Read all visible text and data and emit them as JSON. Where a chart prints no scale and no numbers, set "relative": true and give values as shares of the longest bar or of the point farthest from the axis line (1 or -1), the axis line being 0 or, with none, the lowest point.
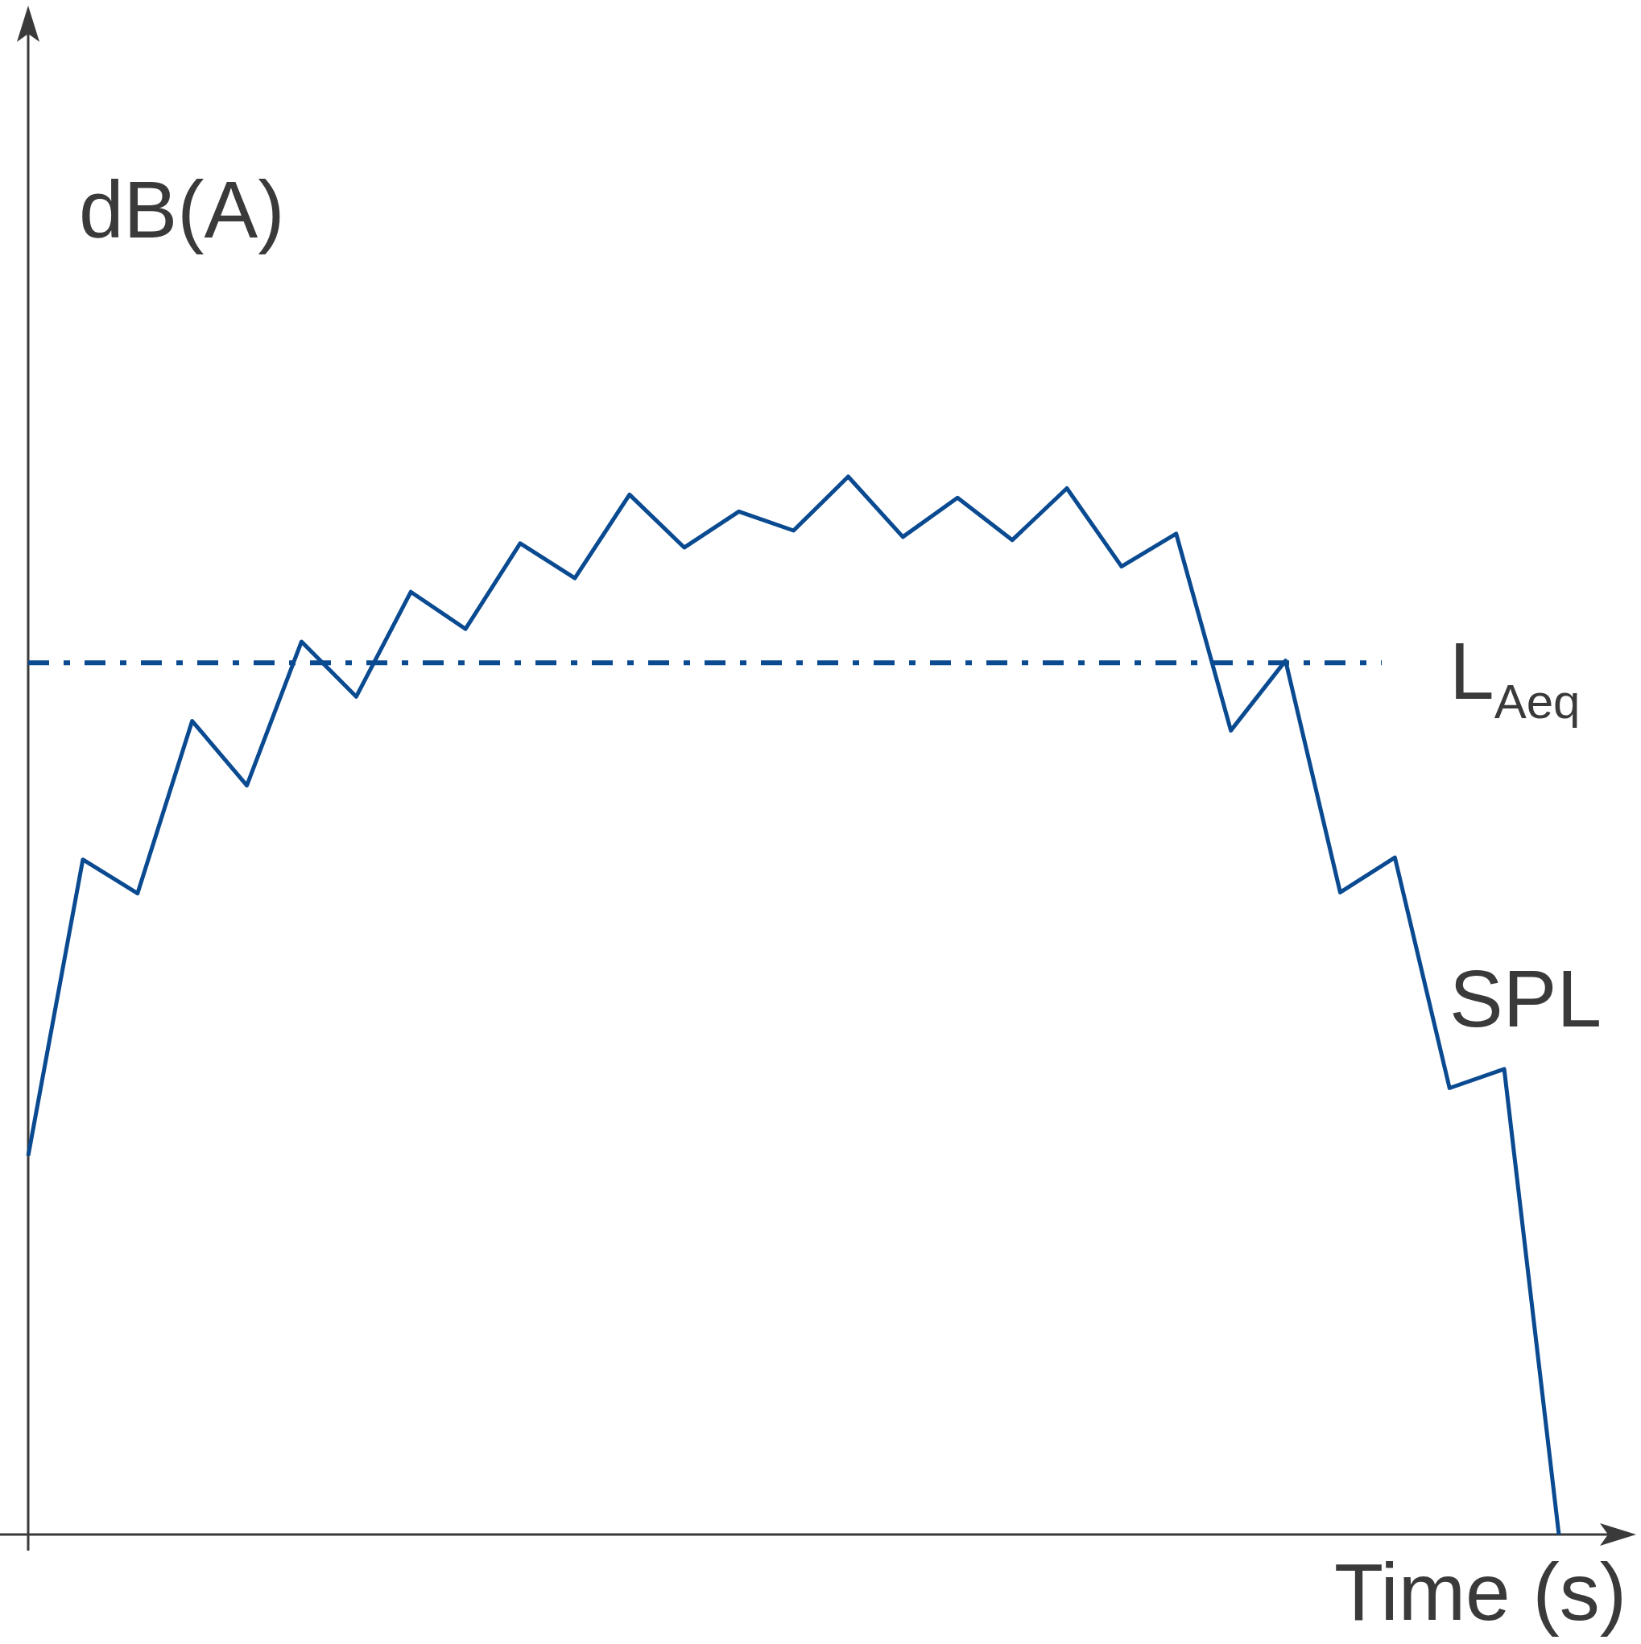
{
  "chart_data": {
    "type": "line",
    "relative": true,
    "xlabel": "Time (s)",
    "ylabel": "dB(A)",
    "categories": [
      null,
      null,
      null,
      null,
      null,
      null,
      null,
      null,
      null,
      null,
      null,
      null,
      null,
      null,
      null,
      null,
      null,
      null,
      null,
      null,
      null,
      null,
      null,
      null,
      null,
      null,
      null,
      null,
      null
    ],
    "series": [
      {
        "name": "SPL",
        "color": "#0a4a91",
        "values": [
          0.358,
          0.638,
          0.606,
          0.769,
          0.708,
          0.844,
          0.792,
          0.891,
          0.856,
          0.937,
          0.904,
          0.983,
          0.933,
          0.967,
          0.949,
          1,
          0.943,
          0.98,
          0.94,
          0.989,
          0.915,
          0.946,
          0.76,
          0.826,
          0.607,
          0.64,
          0.422,
          0.44,
          0
        ]
      }
    ],
    "ref_lines": [
      {
        "axis": "y",
        "value": 0.824,
        "label": "L$_{Aeq}$",
        "color": "#0a4a91",
        "line_style": "dashed"
      }
    ],
    "marker": "none",
    "line_style": "solid"
  }
}
